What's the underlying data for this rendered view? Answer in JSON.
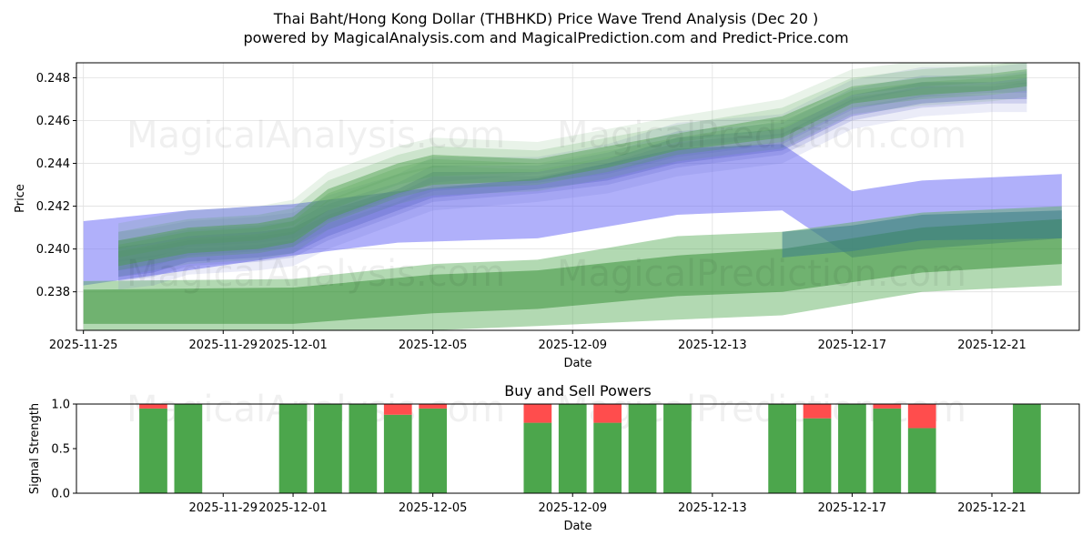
{
  "chart_data": [
    {
      "type": "area",
      "title_line1": "Thai Baht/Hong Kong Dollar (THBHKD) Price Wave Trend Analysis (Dec 20 )",
      "title_line2": "powered by MagicalAnalysis.com and MagicalPrediction.com and Predict-Price.com",
      "xlabel": "Date",
      "ylabel": "Price",
      "x_range": [
        "2025-11-25",
        "2025-12-23"
      ],
      "ylim": [
        0.2362,
        0.2487
      ],
      "x_ticks": [
        "2025-11-25",
        "2025-11-29",
        "2025-12-01",
        "2025-12-05",
        "2025-12-09",
        "2025-12-13",
        "2025-12-17",
        "2025-12-21"
      ],
      "y_ticks": [
        "0.238",
        "0.240",
        "0.242",
        "0.244",
        "0.246",
        "0.248"
      ],
      "watermarks": [
        "MagicalAnalysis.com",
        "MagicalPrediction.com",
        "MagicalAnalysis.com",
        "MagicalPrediction.com"
      ],
      "series": [
        {
          "name": "blue-upper-band",
          "color": "#6f6ff5",
          "x": [
            "2025-11-25",
            "2025-11-28",
            "2025-12-01",
            "2025-12-04",
            "2025-12-08",
            "2025-12-12",
            "2025-12-15",
            "2025-12-17",
            "2025-12-19",
            "2025-12-23"
          ],
          "upper": [
            0.2413,
            0.2418,
            0.2421,
            0.2427,
            0.2433,
            0.2447,
            0.2449,
            0.2427,
            0.2432,
            0.2435
          ],
          "lower": [
            0.2383,
            0.239,
            0.2397,
            0.2403,
            0.2405,
            0.2416,
            0.2418,
            0.2396,
            0.24,
            0.2405
          ]
        },
        {
          "name": "green-lower-band-outer",
          "color": "#55aa55",
          "x": [
            "2025-11-25",
            "2025-12-01",
            "2025-12-05",
            "2025-12-08",
            "2025-12-12",
            "2025-12-15",
            "2025-12-19",
            "2025-12-23"
          ],
          "upper": [
            0.2385,
            0.2386,
            0.2393,
            0.2395,
            0.2406,
            0.2408,
            0.2417,
            0.242
          ],
          "lower": [
            0.2355,
            0.2355,
            0.2362,
            0.2364,
            0.2367,
            0.2369,
            0.238,
            0.2383
          ]
        },
        {
          "name": "green-lower-band-inner",
          "color": "#2e8b2e",
          "x": [
            "2025-11-25",
            "2025-12-01",
            "2025-12-05",
            "2025-12-08",
            "2025-12-12",
            "2025-12-15",
            "2025-12-19",
            "2025-12-23"
          ],
          "upper": [
            0.2381,
            0.2382,
            0.2388,
            0.239,
            0.2397,
            0.24,
            0.241,
            0.2414
          ],
          "lower": [
            0.2365,
            0.2365,
            0.237,
            0.2372,
            0.2378,
            0.238,
            0.2389,
            0.2393
          ]
        },
        {
          "name": "teal-projection-band",
          "color": "#3d7d8a",
          "x": [
            "2025-12-15",
            "2025-12-17",
            "2025-12-19",
            "2025-12-23"
          ],
          "upper": [
            0.2408,
            0.2411,
            0.2416,
            0.2418
          ],
          "lower": [
            0.2396,
            0.2399,
            0.2404,
            0.2405
          ]
        },
        {
          "name": "blue-main-wave",
          "color": "#5b63c8",
          "x": [
            "2025-11-26",
            "2025-11-27",
            "2025-11-28",
            "2025-11-30",
            "2025-12-01",
            "2025-12-02",
            "2025-12-04",
            "2025-12-05",
            "2025-12-08",
            "2025-12-10",
            "2025-12-12",
            "2025-12-15",
            "2025-12-17",
            "2025-12-19",
            "2025-12-21",
            "2025-12-22"
          ],
          "upper": [
            0.2401,
            0.2403,
            0.2406,
            0.2408,
            0.241,
            0.2418,
            0.2428,
            0.2436,
            0.2436,
            0.2442,
            0.2452,
            0.2456,
            0.2472,
            0.2478,
            0.2478,
            0.248
          ],
          "lower": [
            0.2387,
            0.2389,
            0.2394,
            0.2396,
            0.2398,
            0.2406,
            0.2418,
            0.2424,
            0.2428,
            0.2432,
            0.244,
            0.2446,
            0.2462,
            0.2468,
            0.247,
            0.247
          ]
        },
        {
          "name": "green-main-wave",
          "color": "#4a9e4a",
          "x": [
            "2025-11-26",
            "2025-11-27",
            "2025-11-28",
            "2025-11-30",
            "2025-12-01",
            "2025-12-02",
            "2025-12-04",
            "2025-12-05",
            "2025-12-08",
            "2025-12-10",
            "2025-12-12",
            "2025-12-15",
            "2025-12-17",
            "2025-12-19",
            "2025-12-21",
            "2025-12-22"
          ],
          "upper": [
            0.2404,
            0.2407,
            0.241,
            0.2412,
            0.2415,
            0.2428,
            0.244,
            0.2444,
            0.2442,
            0.2448,
            0.2454,
            0.2462,
            0.2476,
            0.248,
            0.2482,
            0.2484
          ],
          "lower": [
            0.2392,
            0.2395,
            0.2398,
            0.24,
            0.2403,
            0.2414,
            0.2426,
            0.243,
            0.2432,
            0.2438,
            0.2446,
            0.2452,
            0.2468,
            0.2472,
            0.2474,
            0.2476
          ]
        }
      ]
    },
    {
      "type": "bar",
      "title": "Buy and Sell Powers",
      "xlabel": "Date",
      "ylabel": "Signal Strength",
      "ylim": [
        0,
        1
      ],
      "x_range": [
        "2025-11-25",
        "2025-12-23"
      ],
      "x_ticks": [
        "2025-11-29",
        "2025-12-01",
        "2025-12-05",
        "2025-12-09",
        "2025-12-13",
        "2025-12-17",
        "2025-12-21"
      ],
      "y_ticks": [
        "0.0",
        "0.5",
        "1.0"
      ],
      "watermarks": [
        "MagicalAnalysis.com",
        "MagicalPrediction.com"
      ],
      "series": [
        {
          "name": "Buy",
          "color": "#4ca64c"
        },
        {
          "name": "Sell",
          "color": "#ff4d4d"
        }
      ],
      "dates": [
        "2025-11-27",
        "2025-11-28",
        "2025-12-01",
        "2025-12-02",
        "2025-12-03",
        "2025-12-04",
        "2025-12-05",
        "2025-12-08",
        "2025-12-09",
        "2025-12-10",
        "2025-12-11",
        "2025-12-12",
        "2025-12-15",
        "2025-12-16",
        "2025-12-17",
        "2025-12-18",
        "2025-12-19",
        "2025-12-22"
      ],
      "buy": [
        0.95,
        1.0,
        1.0,
        1.0,
        1.0,
        0.88,
        0.95,
        0.79,
        1.0,
        0.79,
        1.0,
        1.0,
        1.0,
        0.84,
        1.0,
        0.95,
        0.73,
        1.0
      ],
      "sell": [
        0.05,
        0.0,
        0.0,
        0.0,
        0.0,
        0.12,
        0.05,
        0.21,
        0.0,
        0.21,
        0.0,
        0.0,
        0.0,
        0.16,
        0.0,
        0.05,
        0.27,
        0.0
      ]
    }
  ]
}
